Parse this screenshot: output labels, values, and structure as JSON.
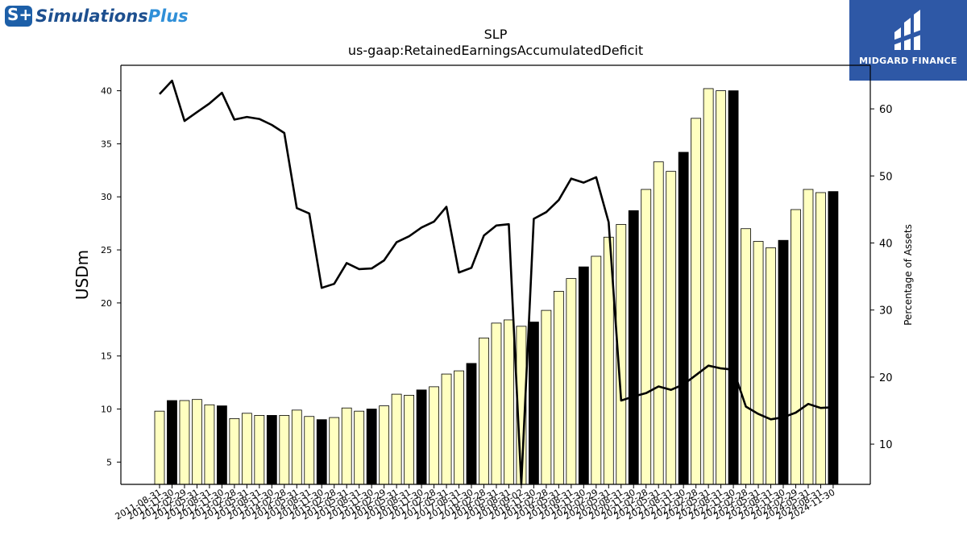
{
  "brand_left": {
    "name_main": "Simulations",
    "name_accent": "Plus",
    "mark_text": "S+"
  },
  "brand_right": {
    "name": "MIDGARD FINANCE"
  },
  "chart_data": {
    "type": "bar",
    "title": "SLP",
    "subtitle": "us-gaap:RetainedEarningsAccumulatedDeficit",
    "ylabel": "USDm",
    "y2label": "Percentage of Assets",
    "ylim": [
      2.9,
      42.4
    ],
    "y2lim": [
      4.0,
      66.5
    ],
    "yticks": [
      5,
      10,
      15,
      20,
      25,
      30,
      35,
      40
    ],
    "y2ticks": [
      10,
      20,
      30,
      40,
      50,
      60
    ],
    "colors": {
      "bar": "#ffffc0",
      "bar_highlight": "#000000",
      "line": "#000000"
    },
    "categories": [
      "2011-08-31",
      "2011-11-30",
      "2012-02-29",
      "2012-05-31",
      "2012-08-31",
      "2012-11-30",
      "2013-02-28",
      "2013-05-31",
      "2013-08-31",
      "2013-11-30",
      "2014-02-28",
      "2014-05-31",
      "2014-08-31",
      "2014-11-30",
      "2015-02-28",
      "2015-05-31",
      "2015-08-31",
      "2015-11-30",
      "2016-02-29",
      "2016-05-31",
      "2016-08-31",
      "2016-11-30",
      "2017-02-28",
      "2017-05-31",
      "2017-08-31",
      "2017-11-30",
      "2018-02-28",
      "2018-05-31",
      "2018-08-31",
      "2018-09-02",
      "2018-11-30",
      "2019-02-28",
      "2019-05-31",
      "2019-08-31",
      "2019-11-30",
      "2020-02-29",
      "2020-05-31",
      "2020-08-31",
      "2020-11-30",
      "2021-02-28",
      "2021-05-31",
      "2021-08-31",
      "2021-11-30",
      "2022-02-28",
      "2022-05-31",
      "2022-08-31",
      "2022-11-30",
      "2023-02-28",
      "2023-05-31",
      "2023-08-31",
      "2023-11-30",
      "2024-02-29",
      "2024-05-31",
      "2024-08-31",
      "2024-11-30"
    ],
    "series": [
      {
        "values": [
          9.8,
          10.8,
          10.8,
          10.9,
          10.4,
          10.3,
          9.1,
          9.6,
          9.4,
          9.4,
          9.4,
          9.9,
          9.3,
          9.0,
          9.2,
          10.1,
          9.8,
          10.0,
          10.3,
          11.4,
          11.3,
          11.8,
          12.1,
          13.3,
          13.6,
          14.3,
          16.7,
          18.1,
          18.4,
          17.8,
          18.2,
          19.3,
          21.1,
          22.3,
          23.4,
          24.4,
          26.2,
          27.4,
          28.7,
          30.7,
          33.3,
          32.4,
          34.2,
          37.4,
          40.2,
          40.0,
          40.0,
          27.0,
          25.8,
          25.2,
          25.9,
          28.8,
          30.7,
          30.4,
          30.5
        ],
        "highlight": [
          false,
          true,
          false,
          false,
          false,
          true,
          false,
          false,
          false,
          true,
          false,
          false,
          false,
          true,
          false,
          false,
          false,
          true,
          false,
          false,
          false,
          true,
          false,
          false,
          false,
          true,
          false,
          false,
          false,
          false,
          true,
          false,
          false,
          false,
          true,
          false,
          false,
          false,
          true,
          false,
          false,
          false,
          true,
          false,
          false,
          false,
          true,
          false,
          false,
          false,
          true,
          false,
          false,
          false,
          true
        ]
      },
      {
        "axis": "right",
        "values": [
          62.2,
          64.2,
          58.2,
          59.5,
          60.8,
          62.4,
          58.4,
          58.8,
          58.5,
          57.6,
          56.4,
          45.2,
          44.4,
          33.3,
          33.9,
          37.0,
          36.1,
          36.2,
          37.4,
          40.1,
          41.0,
          42.3,
          43.2,
          45.4,
          35.6,
          36.3,
          41.1,
          42.6,
          42.8,
          4.0,
          43.6,
          44.6,
          46.4,
          49.6,
          49.0,
          49.8,
          43.1,
          16.5,
          17.1,
          17.6,
          18.6,
          18.1,
          18.9,
          20.3,
          21.7,
          21.3,
          21.1,
          15.6,
          14.5,
          13.7,
          14.0,
          14.7,
          16.0,
          15.4,
          15.5
        ]
      }
    ]
  }
}
